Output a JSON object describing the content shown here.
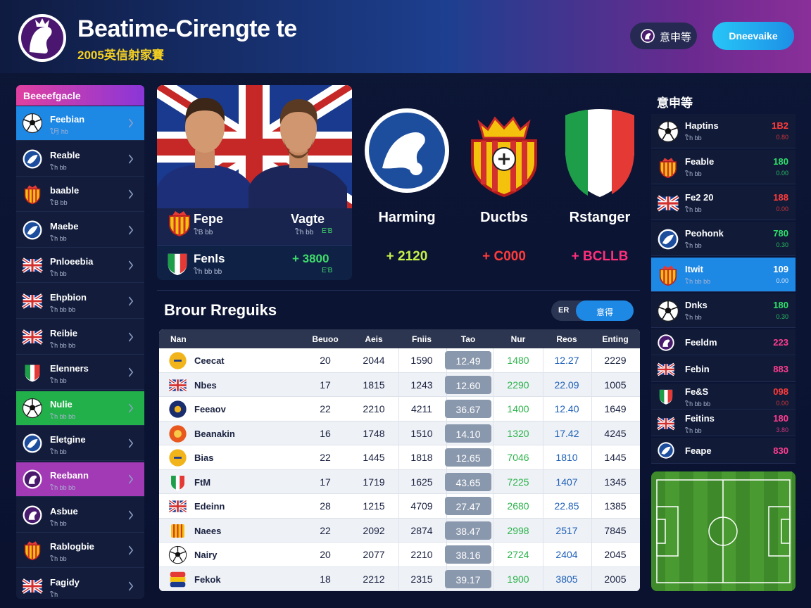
{
  "header": {
    "title": "Beatime-Cirengte te",
    "subtitle": "2005英信射家賽",
    "buttons": [
      "意申等",
      "Dneevaike"
    ]
  },
  "sidebar": {
    "title": "Beeeefgacle",
    "items": [
      {
        "name": "Feebian",
        "sub": "ใ月 hb"
      },
      {
        "name": "Reable",
        "sub": "ใ'h bb"
      },
      {
        "name": "baable",
        "sub": "ใ'B bb"
      },
      {
        "name": "Maebe",
        "sub": "ใ'h bb"
      },
      {
        "name": "Pnloeebia",
        "sub": "ใ'h bb"
      },
      {
        "name": "Ehpbion",
        "sub": "ใ'h bb bb"
      },
      {
        "name": "Reibie",
        "sub": "ใ'h bb bb"
      },
      {
        "name": "Elenners",
        "sub": "ใ'h bb"
      },
      {
        "name": "Nulie",
        "sub": "ใ'h bb bb"
      },
      {
        "name": "Eletgine",
        "sub": "ใ'h bb"
      },
      {
        "name": "Reebann",
        "sub": "ใ'h bb bb"
      },
      {
        "name": "Asbue",
        "sub": "ใ'h bb"
      },
      {
        "name": "Rablogbie",
        "sub": "ใ'h bb"
      },
      {
        "name": "Fagidy",
        "sub": "ใ'h"
      }
    ]
  },
  "featured": {
    "players": [
      {
        "name": "Fepe",
        "sub": "ใ'B bb"
      },
      {
        "name": "Vagte",
        "sub": "ใ'h bb",
        "tag": "E'B"
      }
    ],
    "player_row": {
      "name": "Fenls",
      "sub": "ใ'h bb bb",
      "value": "+ 3800",
      "tag": "E'B"
    },
    "clubs": [
      {
        "name": "Harming",
        "value": "+ 2120"
      },
      {
        "name": "Ductbs",
        "value": "+ C000"
      },
      {
        "name": "Rstanger",
        "value": "+ BCLLB"
      }
    ]
  },
  "table": {
    "title": "Brour Rreguiks",
    "toggle": [
      "ER",
      "意得"
    ],
    "columns": [
      "Nan",
      "Beuoo",
      "Aeis",
      "Fniis",
      "Tao",
      "Nur",
      "Reos",
      "Enting"
    ],
    "rows": [
      [
        "Ceecat",
        "20",
        "2044",
        "1590",
        "12.49",
        "1480",
        "12.27",
        "2229"
      ],
      [
        "Nbes",
        "17",
        "1815",
        "1243",
        "12.60",
        "2290",
        "22.09",
        "1005"
      ],
      [
        "Feeaov",
        "22",
        "2210",
        "4211",
        "36.67",
        "1400",
        "12.40",
        "1649"
      ],
      [
        "Beanakin",
        "16",
        "1748",
        "1510",
        "14.10",
        "1320",
        "17.42",
        "4245"
      ],
      [
        "Bias",
        "22",
        "1445",
        "1818",
        "12.65",
        "7046",
        "1810",
        "1445"
      ],
      [
        "FtM",
        "17",
        "1719",
        "1625",
        "43.65",
        "7225",
        "1407",
        "1345"
      ],
      [
        "Edeinn",
        "28",
        "1215",
        "4709",
        "27.47",
        "2680",
        "22.85",
        "1385"
      ],
      [
        "Naees",
        "22",
        "2092",
        "2874",
        "38.47",
        "2998",
        "2517",
        "7845"
      ],
      [
        "Nairy",
        "20",
        "2077",
        "2210",
        "38.16",
        "2724",
        "2404",
        "2045"
      ],
      [
        "Fekok",
        "18",
        "2212",
        "2315",
        "39.17",
        "1900",
        "3805",
        "2005"
      ]
    ]
  },
  "ranking": {
    "title": "意申等",
    "items": [
      {
        "name": "Haptins",
        "sub": "ใ'h bb",
        "value": "1B2",
        "change": "0.80"
      },
      {
        "name": "Feable",
        "sub": "ใ'h bb",
        "value": "180",
        "change": "0.00"
      },
      {
        "name": "Fe2 20",
        "sub": "ใ'h bb",
        "value": "188",
        "change": "0.00"
      },
      {
        "name": "Peohonk",
        "sub": "ใ'h bb",
        "value": "780",
        "change": "0.30"
      },
      {
        "name": "Itwit",
        "sub": "ใ'h bb bb",
        "value": "109",
        "change": "0.00"
      },
      {
        "name": "Dnks",
        "sub": "ใ'h bb",
        "value": "180",
        "change": "0.30"
      },
      {
        "name": "Feeldm",
        "value": "223"
      },
      {
        "name": "Febin",
        "value": "883"
      },
      {
        "name": "Fe&S",
        "sub": "ใ'h bb bb",
        "value": "098",
        "change": "0.00"
      },
      {
        "name": "Feitins",
        "sub": "ใ'h bb",
        "value": "180",
        "change": "3.80"
      },
      {
        "name": "Feape",
        "value": "830"
      }
    ]
  }
}
